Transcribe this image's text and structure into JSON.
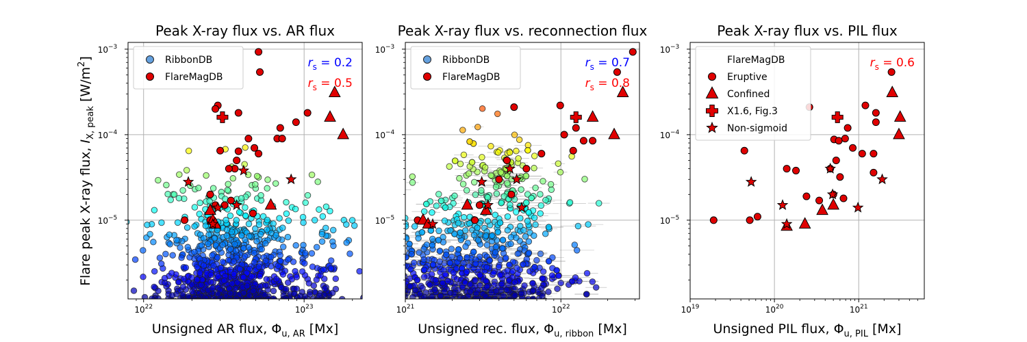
{
  "figure": {
    "ylabel": "Flare peak X-ray flux, I_X,peak [W/m²]",
    "ylabel_main": "Flare peak X-ray flux, ",
    "ylabel_sym": "I",
    "ylabel_sub": "X, peak",
    "ylabel_unit": " [W/m",
    "ylabel_sup": "2",
    "ylabel_close": "]",
    "ylim": [
      1.2e-06,
      0.0012
    ],
    "yticks": [
      {
        "value": 0.001,
        "base": "10",
        "exp": "−3"
      },
      {
        "value": 0.0001,
        "base": "10",
        "exp": "−4"
      },
      {
        "value": 1e-05,
        "base": "10",
        "exp": "−5"
      }
    ]
  },
  "colors": {
    "flaremag": "#e00000",
    "axis": "#000000",
    "grid": "#b0b0b0",
    "rs_blue": "#0000ff",
    "rs_red": "#ff0000",
    "errorbar": "#888888"
  },
  "chart_data": [
    {
      "type": "scatter",
      "title": "Peak X-ray flux vs. AR flux",
      "xlabel": "Unsigned AR flux, Φ_u,AR [Mx]",
      "xlabel_main": "Unsigned AR flux, ",
      "xlabel_sym": "Φ",
      "xlabel_sub": "u, AR",
      "xlabel_unit": " [Mx]",
      "xlim": [
        8e+21,
        2.3e+23
      ],
      "xticks": [
        {
          "value": 1e+22,
          "base": "10",
          "exp": "22"
        },
        {
          "value": 1e+23,
          "base": "10",
          "exp": "23"
        }
      ],
      "legend": [
        {
          "label": "RibbonDB",
          "marker": "circle",
          "color": "#4a90d9"
        },
        {
          "label": "FlareMagDB",
          "marker": "circle",
          "color": "#e00000"
        }
      ],
      "correlations": [
        {
          "label": "r_s = 0.2",
          "sym": "r",
          "sub": "s",
          "text": " = 0.2",
          "color": "#0000ff"
        },
        {
          "label": "r_s = 0.5",
          "sym": "r",
          "sub": "s",
          "text": " = 0.5",
          "color": "#ff0000"
        }
      ],
      "flaremag_series": [
        {
          "marker": "circle",
          "points": [
            [
              5.2e+22,
              0.00093
            ],
            [
              5.3e+22,
              0.00054
            ],
            [
              2.9e+22,
              0.00022
            ],
            [
              2.8e+22,
              0.0002
            ],
            [
              3.9e+22,
              0.00018
            ],
            [
              1.05e+23,
              0.00018
            ],
            [
              8.9e+22,
              0.00014
            ],
            [
              7.1e+22,
              0.00012
            ],
            [
              4.5e+22,
              9e-05
            ],
            [
              6.8e+22,
              9e-05
            ],
            [
              7.3e+22,
              9e-05
            ],
            [
              4.9e+22,
              7e-05
            ],
            [
              5.2e+22,
              6e-05
            ],
            [
              3e+22,
              6.5e-05
            ],
            [
              3.9e+22,
              6.4e-05
            ],
            [
              3.8e+22,
              5e-05
            ],
            [
              3.7e+22,
              4e-05
            ],
            [
              3.4e+22,
              4e-05
            ],
            [
              2.6e+22,
              2e-05
            ],
            [
              3.5e+22,
              1.7e-05
            ],
            [
              2.8e+22,
              1.5e-05
            ],
            [
              3.2e+22,
              1.5e-05
            ],
            [
              4.8e+22,
              1.2e-05
            ],
            [
              1.8e+22,
              1e-05
            ],
            [
              2.6e+22,
              1e-05
            ]
          ]
        },
        {
          "marker": "triangle",
          "points": [
            [
              1.55e+23,
              0.00031
            ],
            [
              1.45e+23,
              0.00016
            ],
            [
              1.75e+23,
              0.0001
            ],
            [
              6.2e+22,
              1.5e-05
            ],
            [
              2.6e+22,
              1.3e-05
            ],
            [
              2.7e+22,
              1e-05
            ],
            [
              2.8e+22,
              9e-06
            ]
          ]
        },
        {
          "marker": "cross",
          "points": [
            [
              3.1e+22,
              0.00016
            ]
          ]
        },
        {
          "marker": "star",
          "points": [
            [
              1.9e+22,
              2.8e-05
            ],
            [
              8.3e+22,
              3e-05
            ],
            [
              4.2e+22,
              3.8e-05
            ],
            [
              3.8e+22,
              1.5e-05
            ],
            [
              2.9e+22,
              1.4e-05
            ],
            [
              2.7e+22,
              9e-06
            ]
          ]
        }
      ]
    },
    {
      "type": "scatter",
      "title": "Peak X-ray flux vs. reconnection flux",
      "xlabel": "Unsigned rec. flux, Φ_u,ribbon [Mx]",
      "xlabel_main": "Unsigned rec. flux, ",
      "xlabel_sym": "Φ",
      "xlabel_sub": "u, ribbon",
      "xlabel_unit": " [Mx]",
      "xlim": [
        1e+21,
        3.2e+22
      ],
      "xticks": [
        {
          "value": 1e+21,
          "base": "10",
          "exp": "21"
        },
        {
          "value": 1e+22,
          "base": "10",
          "exp": "22"
        }
      ],
      "legend": [
        {
          "label": "RibbonDB",
          "marker": "circle",
          "color": "#4a90d9"
        },
        {
          "label": "FlareMagDB",
          "marker": "circle",
          "color": "#e00000"
        }
      ],
      "correlations": [
        {
          "label": "r_s = 0.7",
          "sym": "r",
          "sub": "s",
          "text": " = 0.7",
          "color": "#0000ff"
        },
        {
          "label": "r_s = 0.8",
          "sym": "r",
          "sub": "s",
          "text": " = 0.8",
          "color": "#ff0000"
        }
      ],
      "flaremag_series": [
        {
          "marker": "circle",
          "points": [
            [
              2.3e+22,
              0.00054
            ],
            [
              2.9e+22,
              0.00093
            ],
            [
              5e+21,
              0.00021
            ],
            [
              9.9e+21,
              0.00022
            ],
            [
              1.25e+22,
              0.00012
            ],
            [
              1.05e+22,
              0.0001
            ],
            [
              1.4e+22,
              8.5e-05
            ],
            [
              1.6e+22,
              8.5e-05
            ],
            [
              1.2e+22,
              6.5e-05
            ],
            [
              6e+21,
              4e-05
            ],
            [
              7.5e+21,
              6e-05
            ],
            [
              4.8e+21,
              2e-05
            ],
            [
              4e+21,
              3e-05
            ],
            [
              4.5e+21,
              5e-05
            ],
            [
              3e+21,
              1.5e-05
            ],
            [
              2.8e+21,
              1e-05
            ],
            [
              1.2e+21,
              1e-05
            ]
          ]
        },
        {
          "marker": "triangle",
          "points": [
            [
              2.5e+22,
              0.00031
            ],
            [
              1.6e+22,
              0.00016
            ],
            [
              2.2e+22,
              0.0001
            ],
            [
              2.5e+21,
              1.5e-05
            ],
            [
              3.3e+21,
              1.3e-05
            ],
            [
              1.3e+21,
              1e-05
            ],
            [
              1.4e+21,
              9e-06
            ]
          ]
        },
        {
          "marker": "cross",
          "points": [
            [
              1.25e+22,
              0.00016
            ]
          ]
        },
        {
          "marker": "star",
          "points": [
            [
              4.7e+21,
              4e-05
            ],
            [
              5.2e+21,
              3e-05
            ],
            [
              3.1e+21,
              2.8e-05
            ],
            [
              5.6e+21,
              1.4e-05
            ],
            [
              3.4e+21,
              1.5e-05
            ],
            [
              1.5e+21,
              9e-06
            ]
          ]
        }
      ]
    },
    {
      "type": "scatter",
      "title": "Peak X-ray flux vs. PIL flux",
      "xlabel": "Unsigned PIL flux, Φ_u,PIL [Mx]",
      "xlabel_main": "Unsigned PIL flux, ",
      "xlabel_sym": "Φ",
      "xlabel_sub": "u, PIL",
      "xlabel_unit": " [Mx]",
      "xlim": [
        1e+19,
        6e+21
      ],
      "xticks": [
        {
          "value": 1e+19,
          "base": "10",
          "exp": "19"
        },
        {
          "value": 1e+20,
          "base": "10",
          "exp": "20"
        },
        {
          "value": 1e+21,
          "base": "10",
          "exp": "21"
        }
      ],
      "legend_title": "FlareMagDB",
      "legend": [
        {
          "label": "Eruptive",
          "marker": "circle",
          "color": "#e00000"
        },
        {
          "label": "Confined",
          "marker": "triangle",
          "color": "#e00000"
        },
        {
          "label": "X1.6, Fig.3",
          "marker": "cross",
          "color": "#e00000"
        },
        {
          "label": "Non-sigmoid",
          "marker": "star",
          "color": "#e00000"
        }
      ],
      "correlations": [
        {
          "label": "r_s = 0.6",
          "sym": "r",
          "sub": "s",
          "text": " = 0.6",
          "color": "#ff0000"
        }
      ],
      "flaremag_series": [
        {
          "marker": "circle",
          "points": [
            [
              2.45e+21,
              0.00054
            ],
            [
              2.6e+20,
              0.00021
            ],
            [
              1.2e+21,
              0.00022
            ],
            [
              1.6e+21,
              0.00018
            ],
            [
              1.6e+21,
              0.00014
            ],
            [
              7.4e+20,
              0.00012
            ],
            [
              5.1e+20,
              8.8e-05
            ],
            [
              5.8e+20,
              8.5e-05
            ],
            [
              6.9e+20,
              9e-05
            ],
            [
              8.5e+20,
              7e-05
            ],
            [
              1.1e+21,
              6e-05
            ],
            [
              1.5e+21,
              6e-05
            ],
            [
              4.4e+19,
              6.5e-05
            ],
            [
              1.4e+20,
              4e-05
            ],
            [
              1.8e+20,
              3.8e-05
            ],
            [
              4.6e+20,
              4e-05
            ],
            [
              5.4e+20,
              5e-05
            ],
            [
              6e+20,
              3.2e-05
            ],
            [
              1.5e+21,
              3.6e-05
            ],
            [
              2.4e+20,
              1.9e-05
            ],
            [
              3.4e+20,
              1.7e-05
            ],
            [
              5e+20,
              2e-05
            ],
            [
              6.6e+20,
              1.8e-05
            ],
            [
              1.9e+19,
              1e-05
            ],
            [
              5.1e+19,
              1e-05
            ],
            [
              6.3e+19,
              1.1e-05
            ]
          ]
        },
        {
          "marker": "triangle",
          "points": [
            [
              2.5e+21,
              0.00031
            ],
            [
              3.1e+21,
              0.00016
            ],
            [
              3e+21,
              0.0001
            ],
            [
              5e+20,
              1.5e-05
            ],
            [
              3.7e+20,
              1.3e-05
            ],
            [
              2.3e+20,
              9e-06
            ],
            [
              1.4e+20,
              8.5e-06
            ]
          ]
        },
        {
          "marker": "cross",
          "points": [
            [
              5.6e+20,
              0.00016
            ]
          ]
        },
        {
          "marker": "star",
          "points": [
            [
              5.3e+19,
              2.8e-05
            ],
            [
              4.6e+20,
              4e-05
            ],
            [
              1.9e+21,
              3e-05
            ],
            [
              4.9e+20,
              2e-05
            ],
            [
              1.25e+20,
              1.5e-05
            ],
            [
              9.8e+20,
              1.4e-05
            ],
            [
              1.4e+20,
              9e-06
            ]
          ]
        }
      ]
    }
  ]
}
